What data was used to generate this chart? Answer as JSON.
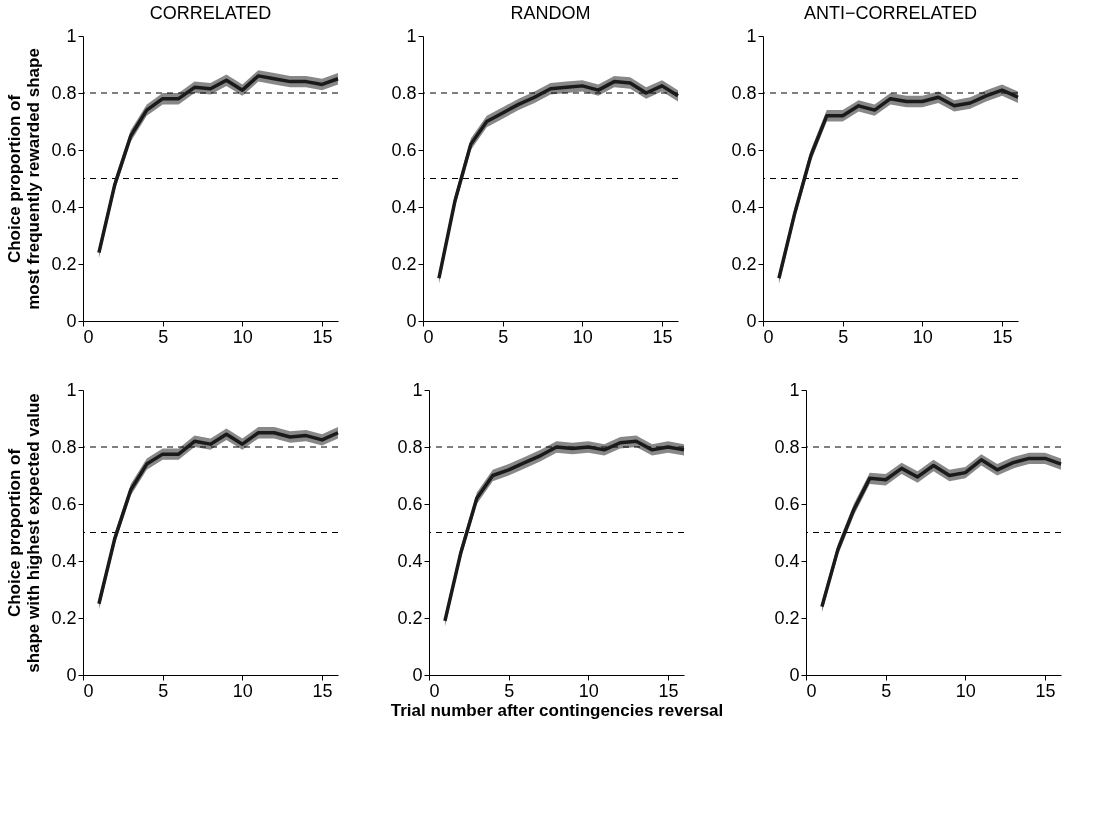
{
  "chart_data": [
    {
      "type": "line",
      "title": "CORRELATED",
      "ylabel": "Choice proportion of\nmost frequently rewarded shape",
      "x": [
        1,
        2,
        3,
        4,
        5,
        6,
        7,
        8,
        9,
        10,
        11,
        12,
        13,
        14,
        15,
        16
      ],
      "xlim": [
        0,
        16
      ],
      "xticks": [
        0,
        5,
        10,
        15
      ],
      "ylim": [
        0,
        1
      ],
      "yticks": [
        0,
        0.2,
        0.4,
        0.6,
        0.8,
        1
      ],
      "grid": false,
      "marker": "none",
      "line_style": "solid",
      "series": [
        {
          "color": "#1a1a1a",
          "values": [
            0.24,
            0.48,
            0.65,
            0.74,
            0.78,
            0.78,
            0.82,
            0.815,
            0.845,
            0.81,
            0.86,
            0.85,
            0.84,
            0.84,
            0.83,
            0.85
          ],
          "lower": [
            0.22,
            0.46,
            0.63,
            0.72,
            0.76,
            0.76,
            0.8,
            0.795,
            0.825,
            0.79,
            0.84,
            0.83,
            0.82,
            0.82,
            0.81,
            0.83
          ],
          "upper": [
            0.26,
            0.5,
            0.67,
            0.76,
            0.8,
            0.8,
            0.84,
            0.835,
            0.865,
            0.83,
            0.88,
            0.87,
            0.86,
            0.86,
            0.85,
            0.87
          ]
        }
      ],
      "ref_lines": [
        {
          "axis": "y",
          "value": 0.8,
          "color": "#000000",
          "line_style": "dashed"
        },
        {
          "axis": "y",
          "value": 0.5,
          "color": "#000000",
          "line_style": "dashed"
        }
      ]
    },
    {
      "type": "line",
      "title": "RANDOM",
      "x": [
        1,
        2,
        3,
        4,
        5,
        6,
        7,
        8,
        9,
        10,
        11,
        12,
        13,
        14,
        15,
        16
      ],
      "xlim": [
        0,
        16
      ],
      "xticks": [
        0,
        5,
        10,
        15
      ],
      "ylim": [
        0,
        1
      ],
      "yticks": [
        0,
        0.2,
        0.4,
        0.6,
        0.8,
        1
      ],
      "grid": false,
      "marker": "none",
      "line_style": "solid",
      "series": [
        {
          "color": "#1a1a1a",
          "values": [
            0.15,
            0.42,
            0.62,
            0.7,
            0.73,
            0.76,
            0.785,
            0.815,
            0.82,
            0.825,
            0.81,
            0.84,
            0.835,
            0.8,
            0.825,
            0.79
          ],
          "lower": [
            0.13,
            0.4,
            0.6,
            0.68,
            0.71,
            0.74,
            0.765,
            0.795,
            0.8,
            0.805,
            0.79,
            0.82,
            0.815,
            0.78,
            0.805,
            0.77
          ],
          "upper": [
            0.17,
            0.44,
            0.64,
            0.72,
            0.75,
            0.78,
            0.805,
            0.835,
            0.84,
            0.845,
            0.83,
            0.86,
            0.855,
            0.82,
            0.845,
            0.81
          ]
        }
      ],
      "ref_lines": [
        {
          "axis": "y",
          "value": 0.8,
          "color": "#000000",
          "line_style": "dashed"
        },
        {
          "axis": "y",
          "value": 0.5,
          "color": "#000000",
          "line_style": "dashed"
        }
      ]
    },
    {
      "type": "line",
      "title": "ANTI−CORRELATED",
      "x": [
        1,
        2,
        3,
        4,
        5,
        6,
        7,
        8,
        9,
        10,
        11,
        12,
        13,
        14,
        15,
        16
      ],
      "xlim": [
        0,
        16
      ],
      "xticks": [
        0,
        5,
        10,
        15
      ],
      "ylim": [
        0,
        1
      ],
      "yticks": [
        0,
        0.2,
        0.4,
        0.6,
        0.8,
        1
      ],
      "grid": false,
      "marker": "none",
      "line_style": "solid",
      "series": [
        {
          "color": "#1a1a1a",
          "values": [
            0.15,
            0.38,
            0.58,
            0.72,
            0.72,
            0.755,
            0.74,
            0.78,
            0.77,
            0.77,
            0.785,
            0.755,
            0.765,
            0.79,
            0.81,
            0.785
          ],
          "lower": [
            0.13,
            0.36,
            0.56,
            0.7,
            0.7,
            0.735,
            0.72,
            0.76,
            0.75,
            0.75,
            0.765,
            0.735,
            0.745,
            0.77,
            0.79,
            0.765
          ],
          "upper": [
            0.17,
            0.4,
            0.6,
            0.74,
            0.74,
            0.775,
            0.76,
            0.8,
            0.79,
            0.79,
            0.805,
            0.775,
            0.785,
            0.81,
            0.83,
            0.805
          ]
        }
      ],
      "ref_lines": [
        {
          "axis": "y",
          "value": 0.8,
          "color": "#000000",
          "line_style": "dashed"
        },
        {
          "axis": "y",
          "value": 0.5,
          "color": "#000000",
          "line_style": "dashed"
        }
      ]
    },
    {
      "type": "line",
      "ylabel": "Choice proportion of\nshape with highest expected value",
      "x": [
        1,
        2,
        3,
        4,
        5,
        6,
        7,
        8,
        9,
        10,
        11,
        12,
        13,
        14,
        15,
        16
      ],
      "xlim": [
        0,
        16
      ],
      "xticks": [
        0,
        5,
        10,
        15
      ],
      "ylim": [
        0,
        1
      ],
      "yticks": [
        0,
        0.2,
        0.4,
        0.6,
        0.8,
        1
      ],
      "grid": false,
      "marker": "none",
      "line_style": "solid",
      "series": [
        {
          "color": "#1a1a1a",
          "values": [
            0.25,
            0.48,
            0.65,
            0.74,
            0.775,
            0.775,
            0.82,
            0.81,
            0.845,
            0.81,
            0.85,
            0.85,
            0.835,
            0.84,
            0.825,
            0.85
          ],
          "lower": [
            0.23,
            0.46,
            0.63,
            0.72,
            0.755,
            0.755,
            0.8,
            0.79,
            0.825,
            0.79,
            0.83,
            0.83,
            0.815,
            0.82,
            0.805,
            0.83
          ],
          "upper": [
            0.27,
            0.5,
            0.67,
            0.76,
            0.795,
            0.795,
            0.84,
            0.83,
            0.865,
            0.83,
            0.87,
            0.87,
            0.855,
            0.86,
            0.845,
            0.87
          ]
        }
      ],
      "ref_lines": [
        {
          "axis": "y",
          "value": 0.8,
          "color": "#000000",
          "line_style": "dashed"
        },
        {
          "axis": "y",
          "value": 0.5,
          "color": "#000000",
          "line_style": "dashed"
        }
      ]
    },
    {
      "type": "line",
      "xlabel": "Trial number after contingencies reversal",
      "x": [
        1,
        2,
        3,
        4,
        5,
        6,
        7,
        8,
        9,
        10,
        11,
        12,
        13,
        14,
        15,
        16
      ],
      "xlim": [
        0,
        16
      ],
      "xticks": [
        0,
        5,
        10,
        15
      ],
      "ylim": [
        0,
        1
      ],
      "yticks": [
        0,
        0.2,
        0.4,
        0.6,
        0.8,
        1
      ],
      "grid": false,
      "marker": "none",
      "line_style": "solid",
      "series": [
        {
          "color": "#1a1a1a",
          "values": [
            0.19,
            0.43,
            0.62,
            0.7,
            0.72,
            0.745,
            0.77,
            0.8,
            0.795,
            0.8,
            0.79,
            0.815,
            0.82,
            0.79,
            0.8,
            0.79
          ],
          "lower": [
            0.17,
            0.41,
            0.6,
            0.68,
            0.7,
            0.725,
            0.75,
            0.78,
            0.775,
            0.78,
            0.77,
            0.795,
            0.8,
            0.77,
            0.78,
            0.77
          ],
          "upper": [
            0.21,
            0.45,
            0.64,
            0.72,
            0.74,
            0.765,
            0.79,
            0.82,
            0.815,
            0.82,
            0.81,
            0.835,
            0.84,
            0.81,
            0.82,
            0.81
          ]
        }
      ],
      "ref_lines": [
        {
          "axis": "y",
          "value": 0.8,
          "color": "#000000",
          "line_style": "dashed"
        },
        {
          "axis": "y",
          "value": 0.5,
          "color": "#000000",
          "line_style": "dashed"
        }
      ]
    },
    {
      "type": "line",
      "x": [
        1,
        2,
        3,
        4,
        5,
        6,
        7,
        8,
        9,
        10,
        11,
        12,
        13,
        14,
        15,
        16
      ],
      "xlim": [
        0,
        16
      ],
      "xticks": [
        0,
        5,
        10,
        15
      ],
      "ylim": [
        0,
        1
      ],
      "yticks": [
        0,
        0.2,
        0.4,
        0.6,
        0.8,
        1
      ],
      "grid": false,
      "marker": "none",
      "line_style": "solid",
      "series": [
        {
          "color": "#1a1a1a",
          "values": [
            0.24,
            0.44,
            0.58,
            0.69,
            0.685,
            0.725,
            0.695,
            0.735,
            0.7,
            0.71,
            0.755,
            0.72,
            0.745,
            0.76,
            0.76,
            0.74
          ],
          "lower": [
            0.22,
            0.42,
            0.56,
            0.67,
            0.665,
            0.705,
            0.675,
            0.715,
            0.68,
            0.69,
            0.735,
            0.7,
            0.725,
            0.74,
            0.74,
            0.72
          ],
          "upper": [
            0.26,
            0.46,
            0.6,
            0.71,
            0.705,
            0.745,
            0.715,
            0.755,
            0.72,
            0.73,
            0.775,
            0.74,
            0.765,
            0.78,
            0.78,
            0.76
          ]
        }
      ],
      "ref_lines": [
        {
          "axis": "y",
          "value": 0.8,
          "color": "#000000",
          "line_style": "dashed"
        },
        {
          "axis": "y",
          "value": 0.5,
          "color": "#000000",
          "line_style": "dashed"
        }
      ]
    }
  ]
}
